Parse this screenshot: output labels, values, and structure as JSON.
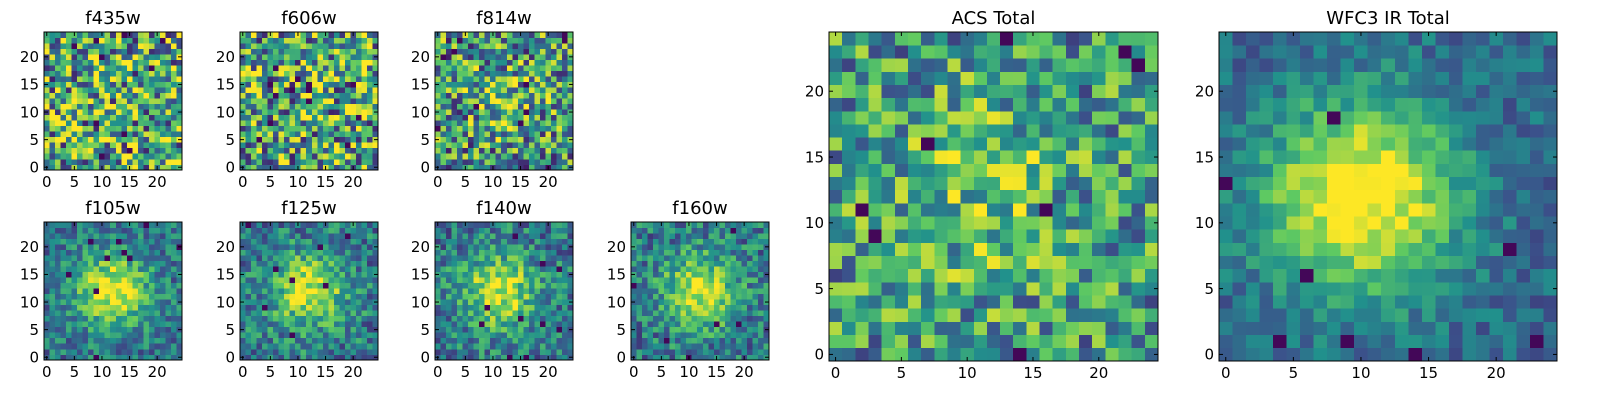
{
  "chart_data": [
    {
      "type": "heatmap",
      "title": "f435w",
      "xticks": [
        "0",
        "5",
        "10",
        "15",
        "20"
      ],
      "yticks": [
        "0",
        "5",
        "10",
        "15",
        "20"
      ],
      "xlim": [
        -0.5,
        24.5
      ],
      "ylim": [
        -0.5,
        24.5
      ],
      "grid_size": 25,
      "peak": [
        11,
        11
      ],
      "source_width": 0,
      "source_strength": 0.08,
      "noise": 0.5,
      "seed": 11
    },
    {
      "type": "heatmap",
      "title": "f606w",
      "xticks": [
        "0",
        "5",
        "10",
        "15",
        "20"
      ],
      "yticks": [
        "0",
        "5",
        "10",
        "15",
        "20"
      ],
      "xlim": [
        -0.5,
        24.5
      ],
      "ylim": [
        -0.5,
        24.5
      ],
      "grid_size": 25,
      "peak": [
        11,
        11
      ],
      "source_width": 0,
      "source_strength": 0.08,
      "noise": 0.5,
      "seed": 23
    },
    {
      "type": "heatmap",
      "title": "f814w",
      "xticks": [
        "0",
        "5",
        "10",
        "15",
        "20"
      ],
      "yticks": [
        "0",
        "5",
        "10",
        "15",
        "20"
      ],
      "xlim": [
        -0.5,
        24.5
      ],
      "ylim": [
        -0.5,
        24.5
      ],
      "grid_size": 25,
      "peak": [
        12,
        12
      ],
      "source_width": 4,
      "source_strength": 0.22,
      "noise": 0.45,
      "seed": 37
    },
    {
      "type": "heatmap",
      "title": "f105w",
      "xticks": [
        "0",
        "5",
        "10",
        "15",
        "20"
      ],
      "yticks": [
        "0",
        "5",
        "10",
        "15",
        "20"
      ],
      "xlim": [
        -0.5,
        24.5
      ],
      "ylim": [
        -0.5,
        24.5
      ],
      "grid_size": 25,
      "peak": [
        12,
        12
      ],
      "source_width": 4.5,
      "source_strength": 0.6,
      "noise": 0.22,
      "seed": 41
    },
    {
      "type": "heatmap",
      "title": "f125w",
      "xticks": [
        "0",
        "5",
        "10",
        "15",
        "20"
      ],
      "yticks": [
        "0",
        "5",
        "10",
        "15",
        "20"
      ],
      "xlim": [
        -0.5,
        24.5
      ],
      "ylim": [
        -0.5,
        24.5
      ],
      "grid_size": 25,
      "peak": [
        12,
        12
      ],
      "source_width": 4.5,
      "source_strength": 0.55,
      "noise": 0.25,
      "seed": 53
    },
    {
      "type": "heatmap",
      "title": "f140w",
      "xticks": [
        "0",
        "5",
        "10",
        "15",
        "20"
      ],
      "yticks": [
        "0",
        "5",
        "10",
        "15",
        "20"
      ],
      "xlim": [
        -0.5,
        24.5
      ],
      "ylim": [
        -0.5,
        24.5
      ],
      "grid_size": 25,
      "peak": [
        11,
        12
      ],
      "source_width": 4.5,
      "source_strength": 0.55,
      "noise": 0.25,
      "seed": 67
    },
    {
      "type": "heatmap",
      "title": "f160w",
      "xticks": [
        "0",
        "5",
        "10",
        "15",
        "20"
      ],
      "yticks": [
        "0",
        "5",
        "10",
        "15",
        "20"
      ],
      "xlim": [
        -0.5,
        24.5
      ],
      "ylim": [
        -0.5,
        24.5
      ],
      "grid_size": 25,
      "peak": [
        12,
        12
      ],
      "source_width": 4.5,
      "source_strength": 0.55,
      "noise": 0.25,
      "seed": 79
    },
    {
      "type": "heatmap",
      "title": "ACS Total",
      "xticks": [
        "0",
        "5",
        "10",
        "15",
        "20"
      ],
      "yticks": [
        "0",
        "5",
        "10",
        "15",
        "20"
      ],
      "xlim": [
        -0.5,
        24.5
      ],
      "ylim": [
        -0.5,
        24.5
      ],
      "grid_size": 25,
      "peak": [
        11,
        12
      ],
      "source_width": 5,
      "source_strength": 0.2,
      "noise": 0.35,
      "seed": 97
    },
    {
      "type": "heatmap",
      "title": "WFC3 IR Total",
      "xticks": [
        "0",
        "5",
        "10",
        "15",
        "20"
      ],
      "yticks": [
        "0",
        "5",
        "10",
        "15",
        "20"
      ],
      "xlim": [
        -0.5,
        24.5
      ],
      "ylim": [
        -0.5,
        24.5
      ],
      "grid_size": 25,
      "peak": [
        10,
        12
      ],
      "source_width": 5,
      "source_strength": 0.75,
      "noise": 0.15,
      "seed": 131
    }
  ],
  "colormap": [
    "#440154",
    "#3b528b",
    "#21918c",
    "#5ec962",
    "#fde725"
  ]
}
